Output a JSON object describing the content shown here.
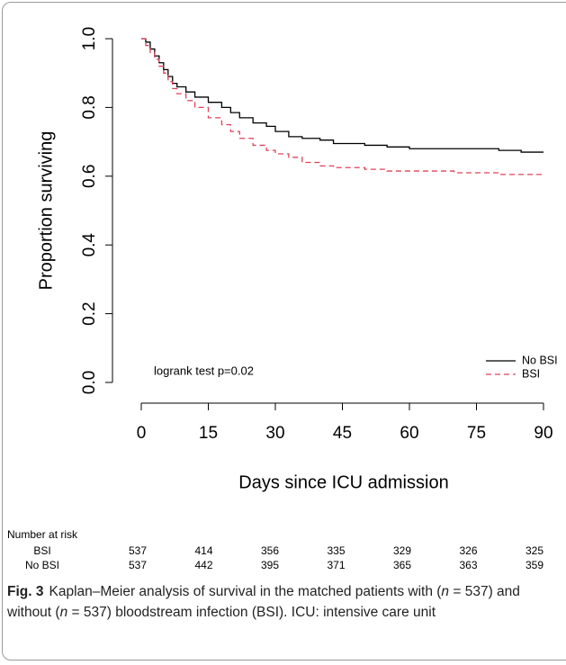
{
  "chart_data": {
    "type": "line",
    "step": "post",
    "x_label": "Days since ICU admission",
    "y_label": "Proportion surviving",
    "annotation": "logrank test p=0.02",
    "x": [
      0,
      1,
      2,
      3,
      4,
      5,
      6,
      7,
      8,
      10,
      12,
      15,
      18,
      20,
      22,
      25,
      28,
      30,
      33,
      36,
      40,
      43,
      50,
      55,
      60,
      70,
      80,
      85,
      90
    ],
    "series": [
      {
        "name": "No BSI",
        "color": "#000000",
        "dash": "solid",
        "values": [
          1.0,
          0.99,
          0.97,
          0.95,
          0.93,
          0.91,
          0.89,
          0.87,
          0.86,
          0.845,
          0.83,
          0.815,
          0.8,
          0.785,
          0.77,
          0.755,
          0.745,
          0.73,
          0.715,
          0.71,
          0.705,
          0.695,
          0.69,
          0.685,
          0.68,
          0.68,
          0.675,
          0.67,
          0.67
        ]
      },
      {
        "name": "BSI",
        "color": "#e0405a",
        "dash": "dashed",
        "values": [
          1.0,
          0.98,
          0.96,
          0.94,
          0.92,
          0.9,
          0.875,
          0.855,
          0.84,
          0.82,
          0.8,
          0.77,
          0.75,
          0.73,
          0.71,
          0.69,
          0.675,
          0.665,
          0.655,
          0.64,
          0.63,
          0.625,
          0.62,
          0.615,
          0.615,
          0.61,
          0.605,
          0.605,
          0.605
        ]
      }
    ],
    "xlim": [
      0,
      90
    ],
    "xticks": [
      0,
      15,
      30,
      45,
      60,
      75,
      90
    ],
    "ylim": [
      0,
      1
    ],
    "yticks": [
      {
        "value": 0,
        "label": "0.0"
      },
      0.2,
      0.4,
      0.6,
      0.8,
      {
        "value": 1,
        "label": "1.0"
      }
    ],
    "legend": "bottom-right",
    "grid": false
  },
  "risk_table": {
    "title": "Number at risk",
    "rows": [
      {
        "label": "BSI",
        "values": [
          537,
          414,
          356,
          335,
          329,
          326,
          325
        ]
      },
      {
        "label": "No BSI",
        "values": [
          537,
          442,
          395,
          371,
          365,
          363,
          359
        ]
      }
    ]
  },
  "caption": {
    "label": "Fig. 3",
    "parts": [
      "Kaplan–Meier analysis of survival in the matched patients with (",
      "n",
      " = 537) and without (",
      "n",
      " = 537) bloodstream infection (BSI). ICU: intensive care unit"
    ]
  }
}
